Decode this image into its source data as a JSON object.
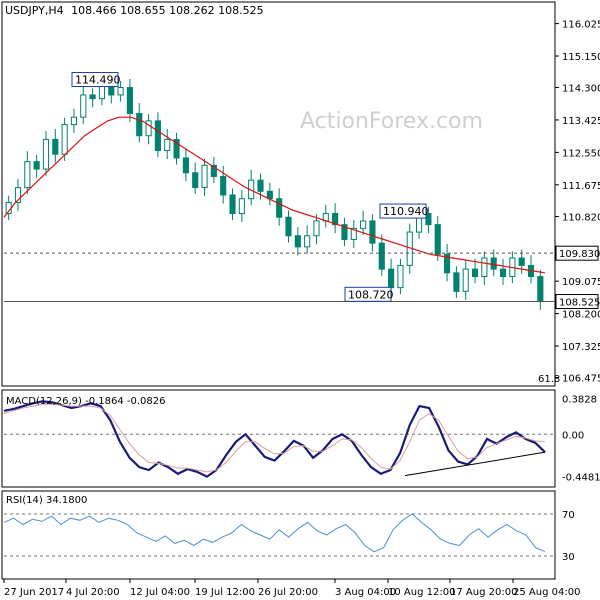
{
  "header": {
    "symbol": "USDJPY,H4",
    "ohlc": "108.466 108.655 108.262 108.525"
  },
  "watermark": "ActionForex.com",
  "fib_label": "61.8",
  "colors": {
    "candle": "#00826e",
    "ma": "#dd1111",
    "macd": "#1a1a7a",
    "signal": "#d9a0a0",
    "rsi": "#4a90d8",
    "label_border": "#1f3f9f",
    "dashed": "#555555"
  },
  "chart_data": [
    {
      "type": "candlestick",
      "title": "USDJPY,H4",
      "ylim": [
        106.3,
        116.5
      ],
      "y_ticks": [
        "116.025",
        "115.150",
        "114.300",
        "113.425",
        "112.550",
        "111.675",
        "110.820",
        "109.075",
        "108.200",
        "107.325",
        "106.475"
      ],
      "annotations": [
        {
          "text": "114.490",
          "value": 114.49,
          "time": "4 Jul 20:00"
        },
        {
          "text": "110.940",
          "value": 110.94,
          "time": "10 Aug 12:00"
        },
        {
          "text": "108.720",
          "value": 108.72,
          "time": "10 Aug 04:00"
        }
      ],
      "horizontal_lines": [
        {
          "label": "109.830",
          "value": 109.83,
          "style": "dashed"
        },
        {
          "label": "108.525",
          "value": 108.525,
          "style": "solid"
        }
      ],
      "close_series_approx": [
        111.2,
        111.6,
        112.3,
        112.1,
        112.9,
        112.5,
        113.3,
        113.5,
        114.1,
        114.0,
        114.4,
        114.1,
        114.3,
        113.6,
        113.0,
        113.4,
        112.6,
        112.9,
        112.4,
        112.0,
        111.6,
        112.2,
        111.9,
        111.4,
        110.9,
        111.3,
        111.8,
        111.5,
        111.3,
        110.8,
        110.3,
        110.0,
        110.3,
        110.7,
        110.9,
        110.6,
        110.2,
        110.5,
        110.7,
        110.1,
        109.4,
        108.9,
        109.5,
        110.4,
        110.9,
        110.6,
        109.8,
        109.3,
        108.8,
        109.4,
        109.2,
        109.7,
        109.4,
        109.2,
        109.7,
        109.5,
        109.2,
        108.53
      ],
      "ma_series_approx": [
        110.8,
        111.2,
        111.5,
        111.8,
        112.1,
        112.4,
        112.7,
        113.0,
        113.2,
        113.4,
        113.5,
        113.5,
        113.4,
        113.2,
        113.0,
        112.8,
        112.6,
        112.4,
        112.2,
        112.0,
        111.8,
        111.6,
        111.45,
        111.3,
        111.15,
        111.0,
        110.9,
        110.8,
        110.7,
        110.6,
        110.5,
        110.4,
        110.3,
        110.2,
        110.1,
        110.0,
        109.9,
        109.8,
        109.75,
        109.7,
        109.65,
        109.6,
        109.55,
        109.5,
        109.45,
        109.4,
        109.35,
        109.3
      ]
    },
    {
      "type": "line",
      "title": "MACD(12,26,9) -0.1864 -0.0826",
      "ylim": [
        -0.55,
        0.45
      ],
      "y_ticks": [
        "0.3828",
        "0.00",
        "-0.4481"
      ],
      "series": [
        {
          "name": "MACD",
          "values": [
            0.25,
            0.27,
            0.3,
            0.33,
            0.35,
            0.34,
            0.31,
            0.28,
            0.3,
            0.33,
            0.3,
            0.15,
            -0.08,
            -0.25,
            -0.35,
            -0.38,
            -0.3,
            -0.35,
            -0.42,
            -0.37,
            -0.4,
            -0.45,
            -0.38,
            -0.22,
            -0.08,
            0.0,
            -0.12,
            -0.24,
            -0.28,
            -0.18,
            -0.07,
            -0.12,
            -0.25,
            -0.17,
            -0.05,
            0.0,
            -0.07,
            -0.22,
            -0.35,
            -0.42,
            -0.38,
            -0.2,
            0.1,
            0.3,
            0.28,
            0.08,
            -0.17,
            -0.29,
            -0.32,
            -0.23,
            -0.05,
            -0.1,
            -0.03,
            0.02,
            -0.05,
            -0.09,
            -0.19
          ]
        },
        {
          "name": "Signal",
          "values": [
            0.22,
            0.25,
            0.28,
            0.3,
            0.32,
            0.32,
            0.31,
            0.3,
            0.3,
            0.3,
            0.28,
            0.2,
            0.05,
            -0.1,
            -0.22,
            -0.3,
            -0.31,
            -0.33,
            -0.36,
            -0.36,
            -0.38,
            -0.4,
            -0.38,
            -0.3,
            -0.18,
            -0.08,
            -0.08,
            -0.15,
            -0.21,
            -0.2,
            -0.13,
            -0.12,
            -0.18,
            -0.18,
            -0.12,
            -0.05,
            -0.06,
            -0.14,
            -0.26,
            -0.35,
            -0.37,
            -0.28,
            -0.08,
            0.15,
            0.22,
            0.15,
            -0.02,
            -0.18,
            -0.26,
            -0.24,
            -0.14,
            -0.1,
            -0.06,
            -0.02,
            -0.04,
            -0.07,
            -0.08
          ]
        }
      ]
    },
    {
      "type": "line",
      "title": "RSI(14) 34.1800",
      "ylim": [
        10,
        90
      ],
      "y_ticks": [
        "70",
        "30"
      ],
      "series": [
        {
          "name": "RSI",
          "values": [
            62,
            66,
            60,
            65,
            63,
            68,
            60,
            66,
            64,
            68,
            62,
            66,
            64,
            60,
            52,
            48,
            44,
            49,
            42,
            45,
            40,
            46,
            43,
            48,
            52,
            60,
            54,
            50,
            46,
            55,
            48,
            56,
            62,
            54,
            50,
            56,
            60,
            52,
            40,
            34,
            38,
            55,
            64,
            70,
            62,
            55,
            46,
            42,
            40,
            50,
            56,
            48,
            55,
            60,
            54,
            50,
            38,
            34.18
          ]
        }
      ]
    }
  ],
  "x_ticks": [
    "27 Jun 2017",
    "4 Jul 20:00",
    "12 Jul 04:00",
    "19 Jul 12:00",
    "26 Jul 20:00",
    "3 Aug 04:00",
    "10 Aug 12:00",
    "17 Aug 20:00",
    "25 Aug 04:00"
  ]
}
